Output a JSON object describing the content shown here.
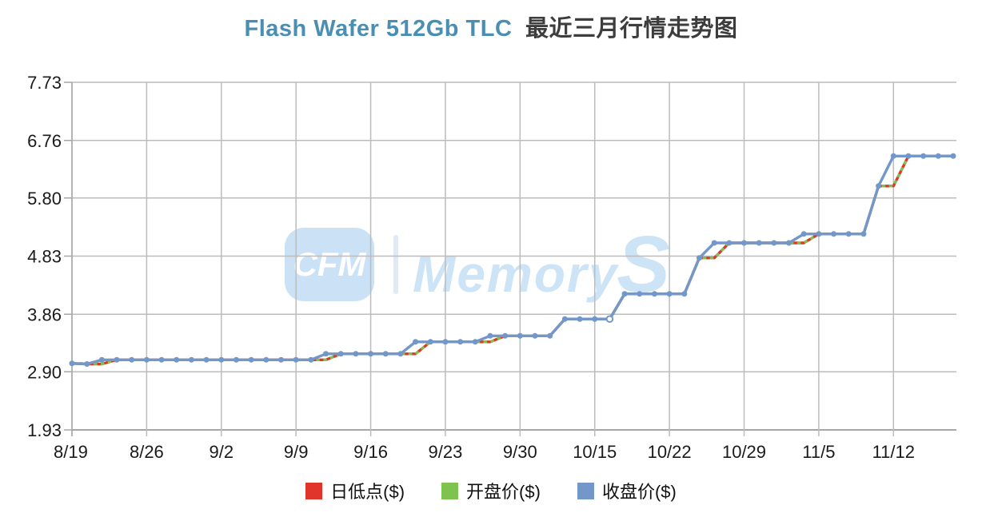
{
  "header": {
    "title_en": "Flash Wafer 512Gb TLC",
    "title_zh": "最近三月行情走势图",
    "title_en_color": "#4a8fb3",
    "title_zh_color": "#3d3d3d"
  },
  "watermark": {
    "badge": "CFM",
    "brand": "Memory",
    "brand_suffix": "S",
    "badge_bg": "#cbe2f6",
    "text_color": "#cde4f6",
    "sep_color": "#dfeaf4"
  },
  "chart_data": {
    "type": "line",
    "title": "Flash Wafer 512Gb TLC 最近三月行情走势图",
    "xlabel": "",
    "ylabel": "",
    "ylim": [
      1.93,
      7.73
    ],
    "grid": true,
    "legend_position": "bottom",
    "y_ticks": [
      "7.73",
      "6.76",
      "5.80",
      "4.83",
      "3.86",
      "2.90",
      "1.93"
    ],
    "y_tick_values": [
      7.73,
      6.76,
      5.8,
      4.83,
      3.86,
      2.9,
      1.93
    ],
    "x_tick_labels": [
      "8/19",
      "8/26",
      "9/2",
      "9/9",
      "9/16",
      "9/23",
      "9/30",
      "10/15",
      "10/22",
      "10/29",
      "11/5",
      "11/12"
    ],
    "x_tick_indices": [
      0,
      5,
      10,
      15,
      20,
      25,
      30,
      35,
      40,
      45,
      50,
      55
    ],
    "x": [
      "8/19",
      "8/20",
      "8/21",
      "8/22",
      "8/23",
      "8/26",
      "8/27",
      "8/28",
      "8/29",
      "8/30",
      "9/2",
      "9/3",
      "9/4",
      "9/5",
      "9/6",
      "9/9",
      "9/10",
      "9/11",
      "9/12",
      "9/13",
      "9/16",
      "9/17",
      "9/18",
      "9/19",
      "9/20",
      "9/23",
      "9/24",
      "9/25",
      "9/26",
      "9/27",
      "9/30",
      "10/9",
      "10/10",
      "10/11",
      "10/14",
      "10/15",
      "10/16",
      "10/17",
      "10/18",
      "10/21",
      "10/22",
      "10/23",
      "10/24",
      "10/25",
      "10/28",
      "10/29",
      "10/30",
      "10/31",
      "11/1",
      "11/4",
      "11/5",
      "11/6",
      "11/7",
      "11/8",
      "11/11",
      "11/12",
      "11/13",
      "11/14",
      "11/15",
      "11/18"
    ],
    "series": [
      {
        "name": "日低点($)",
        "color": "#e0352b",
        "style": "solid",
        "markers": false,
        "values": [
          3.04,
          3.03,
          3.03,
          3.1,
          3.1,
          3.1,
          3.1,
          3.1,
          3.1,
          3.1,
          3.1,
          3.1,
          3.1,
          3.1,
          3.1,
          3.1,
          3.1,
          3.1,
          3.2,
          3.2,
          3.2,
          3.2,
          3.2,
          3.2,
          3.4,
          3.4,
          3.4,
          3.4,
          3.4,
          3.5,
          3.5,
          3.5,
          3.5,
          3.78,
          3.78,
          3.78,
          3.78,
          4.2,
          4.2,
          4.2,
          4.2,
          4.2,
          4.8,
          4.8,
          5.05,
          5.05,
          5.05,
          5.05,
          5.05,
          5.05,
          5.2,
          5.2,
          5.2,
          5.2,
          6.0,
          6.0,
          6.5,
          6.5,
          6.5,
          6.5
        ]
      },
      {
        "name": "开盘价($)",
        "color": "#7ec34f",
        "style": "dashed",
        "markers": false,
        "values": [
          3.04,
          3.04,
          3.03,
          3.1,
          3.1,
          3.1,
          3.1,
          3.1,
          3.1,
          3.1,
          3.1,
          3.1,
          3.1,
          3.1,
          3.1,
          3.1,
          3.1,
          3.1,
          3.2,
          3.2,
          3.2,
          3.2,
          3.2,
          3.2,
          3.4,
          3.4,
          3.4,
          3.4,
          3.4,
          3.5,
          3.5,
          3.5,
          3.5,
          3.78,
          3.78,
          3.78,
          3.78,
          4.2,
          4.2,
          4.2,
          4.2,
          4.2,
          4.8,
          4.8,
          5.05,
          5.05,
          5.05,
          5.05,
          5.05,
          5.05,
          5.2,
          5.2,
          5.2,
          5.2,
          6.0,
          6.0,
          6.5,
          6.5,
          6.5,
          6.5
        ]
      },
      {
        "name": "收盘价($)",
        "color": "#7397c8",
        "style": "solid",
        "markers": true,
        "hollow_marker_index": 36,
        "values": [
          3.04,
          3.03,
          3.1,
          3.1,
          3.1,
          3.1,
          3.1,
          3.1,
          3.1,
          3.1,
          3.1,
          3.1,
          3.1,
          3.1,
          3.1,
          3.1,
          3.1,
          3.2,
          3.2,
          3.2,
          3.2,
          3.2,
          3.2,
          3.4,
          3.4,
          3.4,
          3.4,
          3.4,
          3.5,
          3.5,
          3.5,
          3.5,
          3.5,
          3.78,
          3.78,
          3.78,
          3.78,
          4.2,
          4.2,
          4.2,
          4.2,
          4.2,
          4.8,
          5.05,
          5.05,
          5.05,
          5.05,
          5.05,
          5.05,
          5.2,
          5.2,
          5.2,
          5.2,
          5.2,
          6.0,
          6.5,
          6.5,
          6.5,
          6.5,
          6.5
        ]
      }
    ]
  }
}
